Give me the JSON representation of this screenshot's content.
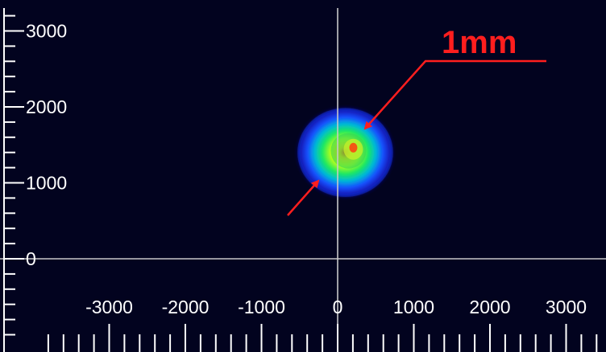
{
  "viewer": {
    "background_color": "#02031f",
    "axis_color": "#ffffff",
    "crosshair_color": "#c8c8c8",
    "annotation_color": "#ff1e1e",
    "x_range": [
      -3800,
      3500
    ],
    "y_range": [
      -1000,
      3300
    ],
    "x_tick_labels": [
      "-3000",
      "-2000",
      "-1000",
      "0",
      "1000",
      "2000",
      "3000"
    ],
    "y_tick_labels": [
      "3000",
      "2000",
      "1000",
      "0"
    ],
    "beam_center": {
      "x": 100,
      "y": 1400
    },
    "beam_diameter_um": 1000
  },
  "annotation": {
    "label": "1mm",
    "arrow_style": "double-headed diameter indicator"
  }
}
